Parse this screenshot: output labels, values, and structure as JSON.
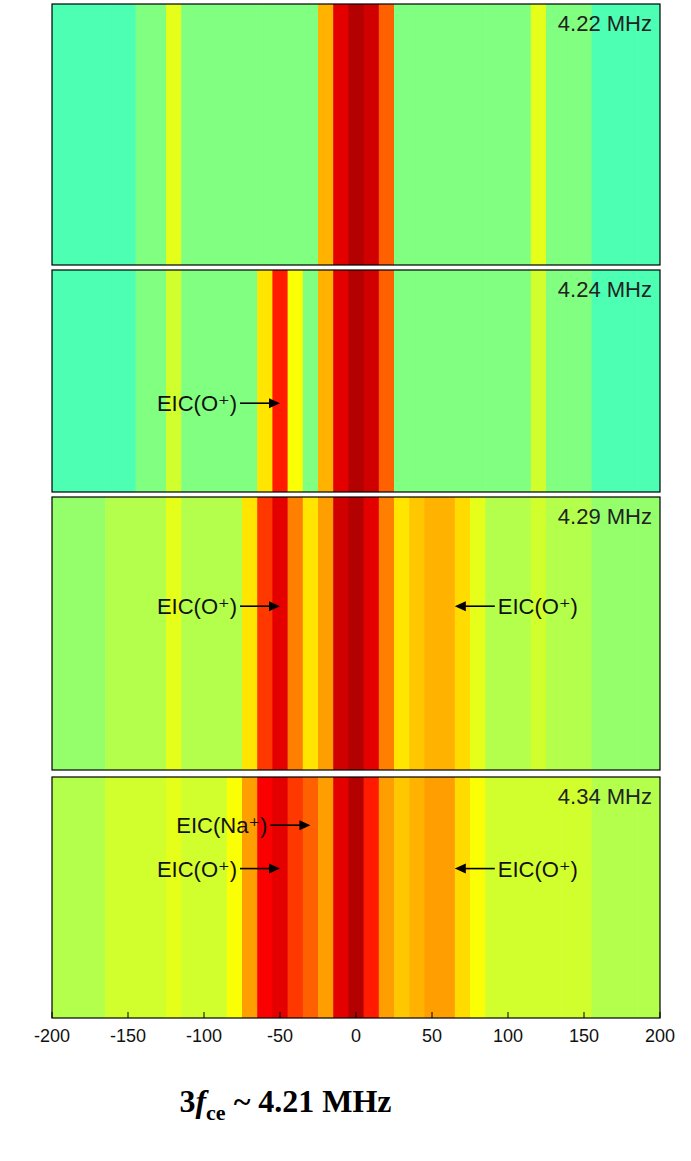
{
  "chart_data": {
    "type": "heatmap",
    "xlim": [
      -200,
      200
    ],
    "xticks": [
      -200,
      -150,
      -100,
      -50,
      0,
      50,
      100,
      150,
      200
    ],
    "zlim": [
      0,
      1
    ],
    "x": [
      -200,
      -190,
      -180,
      -170,
      -160,
      -150,
      -140,
      -130,
      -120,
      -110,
      -100,
      -90,
      -80,
      -70,
      -60,
      -50,
      -40,
      -30,
      -20,
      -10,
      0,
      10,
      20,
      30,
      40,
      50,
      60,
      70,
      80,
      90,
      100,
      110,
      120,
      130,
      140,
      150,
      160,
      170,
      180,
      190,
      200
    ],
    "panels": [
      {
        "label": "4.22 MHz",
        "values": [
          0.45,
          0.45,
          0.45,
          0.45,
          0.45,
          0.45,
          0.5,
          0.5,
          0.6,
          0.5,
          0.5,
          0.5,
          0.5,
          0.5,
          0.5,
          0.5,
          0.5,
          0.5,
          0.7,
          0.9,
          0.95,
          0.92,
          0.78,
          0.5,
          0.5,
          0.5,
          0.5,
          0.5,
          0.5,
          0.5,
          0.5,
          0.5,
          0.6,
          0.5,
          0.5,
          0.5,
          0.45,
          0.45,
          0.45,
          0.45,
          0.45
        ],
        "annotations": []
      },
      {
        "label": "4.24 MHz",
        "values": [
          0.45,
          0.45,
          0.45,
          0.45,
          0.45,
          0.45,
          0.5,
          0.5,
          0.58,
          0.5,
          0.5,
          0.5,
          0.5,
          0.5,
          0.65,
          0.85,
          0.62,
          0.5,
          0.7,
          0.9,
          0.95,
          0.92,
          0.78,
          0.5,
          0.5,
          0.5,
          0.5,
          0.5,
          0.5,
          0.5,
          0.5,
          0.5,
          0.58,
          0.5,
          0.5,
          0.5,
          0.45,
          0.45,
          0.45,
          0.45,
          0.45
        ],
        "annotations": [
          {
            "text": "EIC(O⁺)",
            "x": -50
          }
        ]
      },
      {
        "label": "4.29 MHz",
        "values": [
          0.52,
          0.52,
          0.52,
          0.52,
          0.55,
          0.55,
          0.55,
          0.55,
          0.6,
          0.55,
          0.55,
          0.55,
          0.55,
          0.65,
          0.82,
          0.9,
          0.75,
          0.65,
          0.72,
          0.92,
          0.95,
          0.9,
          0.75,
          0.65,
          0.68,
          0.7,
          0.7,
          0.66,
          0.6,
          0.55,
          0.55,
          0.55,
          0.58,
          0.55,
          0.55,
          0.55,
          0.52,
          0.52,
          0.52,
          0.52,
          0.52
        ],
        "annotations": [
          {
            "text": "EIC(O⁺)",
            "x": -50
          },
          {
            "text": "EIC(O⁺)",
            "x": 65
          }
        ]
      },
      {
        "label": "4.34 MHz",
        "values": [
          0.55,
          0.55,
          0.55,
          0.55,
          0.58,
          0.58,
          0.58,
          0.58,
          0.6,
          0.58,
          0.58,
          0.58,
          0.62,
          0.72,
          0.88,
          0.9,
          0.82,
          0.78,
          0.72,
          0.9,
          0.95,
          0.85,
          0.72,
          0.68,
          0.7,
          0.72,
          0.72,
          0.66,
          0.62,
          0.58,
          0.58,
          0.58,
          0.58,
          0.58,
          0.58,
          0.58,
          0.55,
          0.55,
          0.55,
          0.55,
          0.55
        ],
        "annotations": [
          {
            "text": "EIC(Na⁺)",
            "x": -30
          },
          {
            "text": "EIC(O⁺)",
            "x": -50
          },
          {
            "text": "EIC(O⁺)",
            "x": 65
          }
        ]
      }
    ],
    "caption": {
      "pre": "3",
      "var": "f",
      "sub": "ce",
      "post": " ~ 4.21 MHz"
    }
  }
}
